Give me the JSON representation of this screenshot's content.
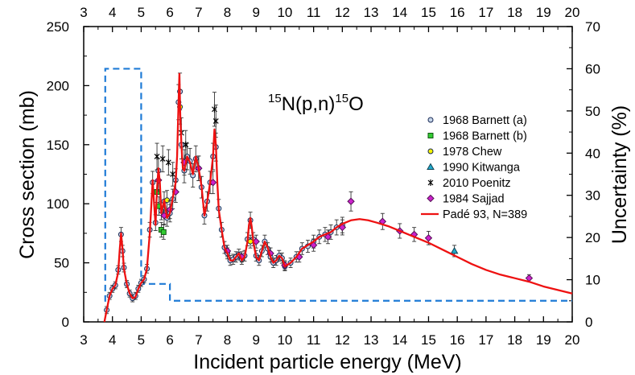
{
  "chart_data": {
    "type": "line",
    "title": "15N(p,n)15O",
    "title_parts": {
      "mass_a": "15",
      "element_a": "N",
      "reaction": "(p,n)",
      "mass_b": "15",
      "element_b": "O"
    },
    "xlabel": "Incident particle energy (MeV)",
    "ylabel": "Cross section (mb)",
    "y2label": "Uncertainty (%)",
    "xlim": [
      3,
      20
    ],
    "ylim": [
      0,
      250
    ],
    "y2lim": [
      0,
      70
    ],
    "x_ticks": [
      "3",
      "4",
      "5",
      "6",
      "7",
      "8",
      "9",
      "10",
      "11",
      "12",
      "13",
      "14",
      "15",
      "16",
      "17",
      "18",
      "19",
      "20"
    ],
    "y_ticks": [
      "0",
      "50",
      "100",
      "150",
      "200",
      "250"
    ],
    "y2_ticks": [
      "0",
      "10",
      "20",
      "30",
      "40",
      "50",
      "60",
      "70"
    ],
    "legend_position": "right-middle",
    "fit": {
      "name": "Padé 93, N=389",
      "color": "#ee1111",
      "x": [
        3.72,
        3.8,
        3.9,
        4.0,
        4.1,
        4.2,
        4.25,
        4.3,
        4.35,
        4.4,
        4.5,
        4.6,
        4.7,
        4.8,
        4.9,
        5.0,
        5.1,
        5.2,
        5.3,
        5.4,
        5.45,
        5.5,
        5.55,
        5.6,
        5.65,
        5.7,
        5.8,
        5.9,
        6.0,
        6.1,
        6.2,
        6.25,
        6.3,
        6.33,
        6.36,
        6.4,
        6.45,
        6.5,
        6.6,
        6.7,
        6.8,
        6.9,
        7.0,
        7.1,
        7.2,
        7.3,
        7.4,
        7.5,
        7.55,
        7.6,
        7.65,
        7.7,
        7.8,
        7.9,
        8.0,
        8.1,
        8.2,
        8.3,
        8.4,
        8.5,
        8.6,
        8.7,
        8.75,
        8.8,
        8.85,
        8.9,
        9.0,
        9.1,
        9.2,
        9.3,
        9.4,
        9.5,
        9.6,
        9.7,
        9.8,
        9.9,
        10.0,
        10.2,
        10.4,
        10.6,
        10.8,
        11.0,
        11.2,
        11.4,
        11.6,
        11.8,
        12.0,
        12.3,
        12.6,
        12.9,
        13.2,
        13.6,
        14.0,
        14.5,
        15.0,
        15.5,
        16.0,
        16.5,
        17.0,
        17.5,
        18.0,
        18.5,
        19.0,
        19.5,
        20.0
      ],
      "values": [
        0,
        10,
        22,
        28,
        31,
        42,
        60,
        75,
        62,
        45,
        32,
        24,
        20,
        21,
        28,
        33,
        36,
        45,
        75,
        120,
        100,
        82,
        112,
        130,
        118,
        92,
        103,
        88,
        92,
        105,
        118,
        140,
        185,
        210,
        175,
        150,
        130,
        128,
        140,
        135,
        125,
        140,
        130,
        115,
        90,
        102,
        118,
        140,
        163,
        150,
        118,
        95,
        78,
        63,
        58,
        52,
        52,
        55,
        58,
        52,
        55,
        68,
        82,
        88,
        80,
        68,
        55,
        52,
        60,
        68,
        63,
        55,
        50,
        52,
        56,
        54,
        47,
        50,
        55,
        62,
        65,
        68,
        72,
        74,
        76,
        80,
        83,
        86,
        87,
        86,
        84,
        81,
        77,
        72,
        67,
        61,
        55,
        49,
        44,
        40,
        37,
        34,
        30,
        27,
        24
      ]
    },
    "uncertainty": {
      "name": "Uncertainty",
      "color": "#1f7bd6",
      "x": [
        3.72,
        3.75,
        3.75,
        5.0,
        5.0,
        6.0,
        6.0,
        20.0
      ],
      "values": [
        5,
        5,
        60,
        60,
        9,
        9,
        5,
        5
      ]
    },
    "series": [
      {
        "name": "1968 Barnett (a)",
        "marker": "circle",
        "color": "#c6d6ea",
        "x": [
          3.8,
          3.9,
          4.0,
          4.1,
          4.2,
          4.3,
          4.35,
          4.4,
          4.5,
          4.6,
          4.7,
          4.8,
          4.9,
          5.0,
          5.1,
          5.2,
          5.3,
          5.4,
          5.5,
          5.6,
          5.7,
          5.8,
          5.9,
          6.0,
          6.1,
          6.2,
          6.3,
          6.35,
          6.4,
          6.5,
          6.6,
          6.7,
          6.8,
          6.9,
          7.0,
          7.1,
          7.2,
          7.3,
          7.4,
          7.5,
          7.6,
          7.7,
          7.8,
          7.9,
          8.0,
          8.1,
          8.2,
          8.3,
          8.4,
          8.5,
          8.6,
          8.7,
          8.8,
          8.9,
          9.0,
          9.1,
          9.2,
          9.3,
          9.4,
          9.5,
          9.6,
          9.7,
          9.8,
          9.9,
          10.0,
          10.2,
          10.4,
          10.6,
          10.8,
          11.0,
          11.2,
          11.4,
          11.6,
          11.8,
          12.0
        ],
        "values": [
          10,
          22,
          28,
          31,
          44,
          74,
          60,
          46,
          32,
          24,
          20,
          22,
          28,
          33,
          36,
          45,
          78,
          118,
          84,
          128,
          94,
          102,
          88,
          92,
          104,
          120,
          186,
          195,
          150,
          128,
          140,
          136,
          124,
          138,
          130,
          114,
          90,
          102,
          118,
          140,
          148,
          96,
          78,
          63,
          58,
          52,
          53,
          55,
          57,
          53,
          56,
          70,
          86,
          70,
          56,
          52,
          60,
          68,
          62,
          55,
          50,
          52,
          56,
          54,
          47,
          50,
          55,
          62,
          64,
          68,
          72,
          74,
          76,
          80,
          82
        ]
      },
      {
        "name": "1968 Barnett (b)",
        "marker": "square",
        "color": "#33cc33",
        "x": [
          5.55,
          5.62,
          5.7,
          5.78
        ],
        "values": [
          110,
          98,
          78,
          76
        ]
      },
      {
        "name": "1978 Chew",
        "marker": "circle",
        "color": "#f5f500",
        "x": [
          5.9,
          6.35,
          8.8
        ],
        "values": [
          103,
          182,
          68
        ]
      },
      {
        "name": "1990 Kitwanga",
        "marker": "triangle",
        "color": "#22aacc",
        "x": [
          15.9
        ],
        "values": [
          60
        ]
      },
      {
        "name": "2010 Poenitz",
        "marker": "cross",
        "color": "#000000",
        "x": [
          5.55,
          5.75,
          5.95,
          6.1,
          6.4,
          6.55,
          7.55,
          7.6
        ],
        "values": [
          140,
          138,
          135,
          125,
          160,
          150,
          180,
          170
        ]
      },
      {
        "name": "1984 Sajjad",
        "marker": "diamond",
        "color": "#cc22cc",
        "x": [
          5.6,
          5.8,
          6.0,
          6.2,
          6.5,
          7.0,
          7.5,
          8.0,
          8.5,
          9.0,
          9.5,
          10.0,
          10.5,
          11.0,
          11.5,
          12.0,
          12.3,
          13.4,
          14.0,
          14.5,
          15.0,
          18.5
        ],
        "values": [
          120,
          90,
          95,
          110,
          135,
          130,
          118,
          60,
          55,
          68,
          58,
          48,
          55,
          65,
          72,
          80,
          102,
          85,
          77,
          74,
          71,
          37
        ]
      }
    ]
  }
}
